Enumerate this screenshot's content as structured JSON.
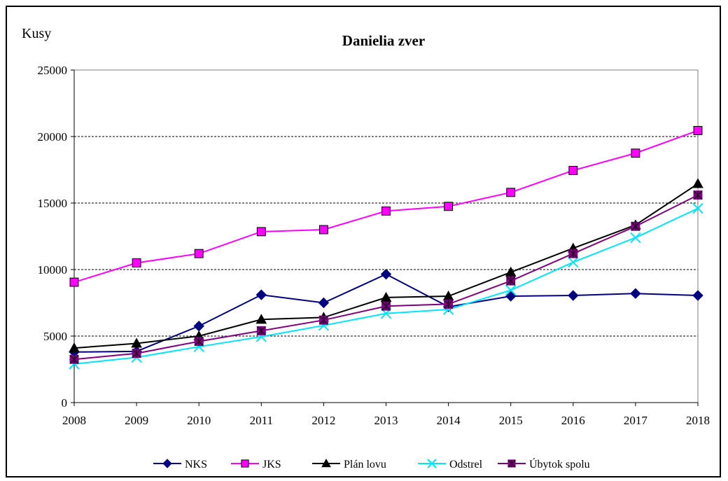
{
  "chart_data": {
    "type": "line",
    "title": "Danielia zver",
    "ylabel": "Kusy",
    "xlabel": "",
    "ylim": [
      0,
      25000
    ],
    "yticks": [
      0,
      5000,
      10000,
      15000,
      20000,
      25000
    ],
    "grid": "horizontal-dashed",
    "legend": "bottom",
    "categories": [
      "2008",
      "2009",
      "2010",
      "2011",
      "2012",
      "2013",
      "2014",
      "2015",
      "2016",
      "2017",
      "2018"
    ],
    "series": [
      {
        "name": "NKS",
        "color": "#000080",
        "marker": "diamond",
        "values": [
          3800,
          3850,
          5750,
          8100,
          7500,
          9650,
          7200,
          8000,
          8050,
          8200,
          8050
        ]
      },
      {
        "name": "JKS",
        "color": "#ff00ff",
        "marker": "square",
        "values": [
          9050,
          10500,
          11200,
          12850,
          13000,
          14400,
          14750,
          15800,
          17450,
          18750,
          20450
        ]
      },
      {
        "name": "Plán lovu",
        "color": "#000000",
        "marker": "triangle",
        "values": [
          4100,
          4450,
          5000,
          6250,
          6400,
          7900,
          8000,
          9800,
          11600,
          13350,
          16450
        ]
      },
      {
        "name": "Odstrel",
        "color": "#00e5ff",
        "marker": "x",
        "values": [
          2900,
          3400,
          4200,
          4950,
          5800,
          6700,
          7000,
          8450,
          10550,
          12400,
          14600
        ]
      },
      {
        "name": "Úbytok spolu",
        "color": "#800080",
        "marker": "star-square",
        "values": [
          3250,
          3700,
          4600,
          5400,
          6200,
          7250,
          7400,
          9150,
          11200,
          13250,
          15600
        ]
      }
    ]
  }
}
